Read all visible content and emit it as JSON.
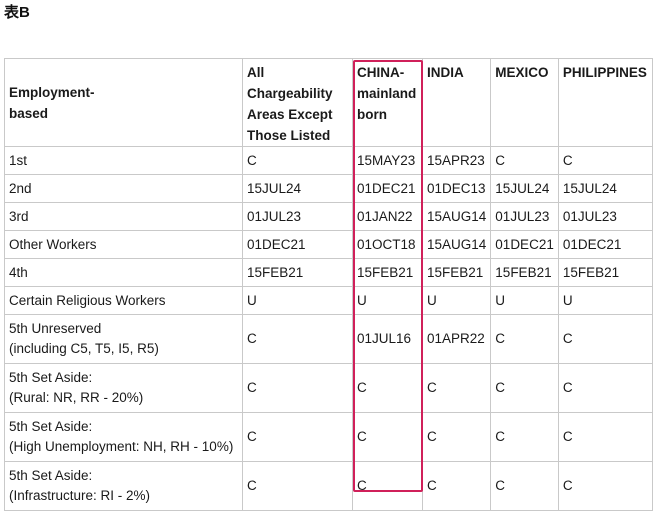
{
  "title": "表B",
  "highlight_color": "#d0205a",
  "table": {
    "headers": [
      "Employment-\nbased",
      "All Chargeability\nAreas Except\nThose Listed",
      "CHINA-\nmainland\nborn",
      "INDIA",
      "MEXICO",
      "PHILIPPINES"
    ],
    "rows": [
      [
        "1st",
        "C",
        "15MAY23",
        "15APR23",
        "C",
        "C"
      ],
      [
        "2nd",
        "15JUL24",
        "01DEC21",
        "01DEC13",
        "15JUL24",
        "15JUL24"
      ],
      [
        "3rd",
        "01JUL23",
        "01JAN22",
        "15AUG14",
        "01JUL23",
        "01JUL23"
      ],
      [
        "Other Workers",
        "01DEC21",
        "01OCT18",
        "15AUG14",
        "01DEC21",
        "01DEC21"
      ],
      [
        "4th",
        "15FEB21",
        "15FEB21",
        "15FEB21",
        "15FEB21",
        "15FEB21"
      ],
      [
        "Certain Religious Workers",
        "U",
        "U",
        "U",
        "U",
        "U"
      ],
      [
        "5th Unreserved\n(including C5, T5, I5, R5)",
        "C",
        "01JUL16",
        "01APR22",
        "C",
        "C"
      ],
      [
        "5th Set Aside:\n(Rural: NR, RR - 20%)",
        "C",
        "C",
        "C",
        "C",
        "C"
      ],
      [
        "5th Set Aside:\n(High Unemployment: NH, RH - 10%)",
        "C",
        "C",
        "C",
        "C",
        "C"
      ],
      [
        "5th Set Aside:\n(Infrastructure: RI - 2%)",
        "C",
        "C",
        "C",
        "C",
        "C"
      ]
    ]
  }
}
